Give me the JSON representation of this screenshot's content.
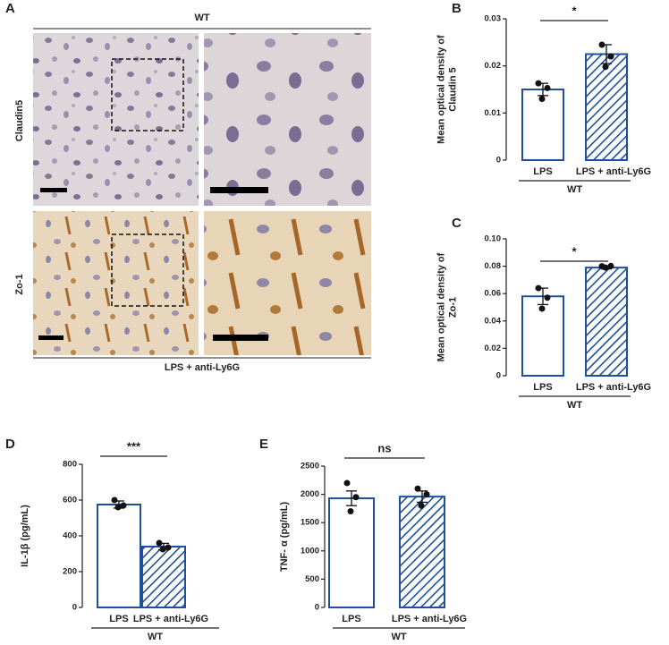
{
  "panel_a": {
    "letter": "A",
    "header": "WT",
    "rows": [
      "Claudin5",
      "Zo-1"
    ],
    "footer": "LPS + anti-Ly6G"
  },
  "chart_data": [
    {
      "type": "bar",
      "panel": "B",
      "ylabel": [
        "Mean optical density of",
        "Claudin 5"
      ],
      "categories": [
        "LPS",
        "LPS + anti-Ly6G"
      ],
      "group": "WT",
      "values": [
        0.015,
        0.0225
      ],
      "errors": [
        0.0013,
        0.002
      ],
      "points": [
        [
          0.0163,
          0.0153,
          0.013
        ],
        [
          0.0245,
          0.022,
          0.0198
        ]
      ],
      "significance": "*",
      "color": "#1d4f9a",
      "hatched": [
        false,
        true
      ],
      "ylim": [
        0,
        0.03
      ],
      "yticks": [
        0,
        0.01,
        0.02,
        0.03
      ]
    },
    {
      "type": "bar",
      "panel": "C",
      "ylabel": [
        "Mean optical density of",
        "Zo-1"
      ],
      "categories": [
        "LPS",
        "LPS + anti-Ly6G"
      ],
      "group": "WT",
      "values": [
        0.058,
        0.079
      ],
      "errors": [
        0.006,
        0.001
      ],
      "points": [
        [
          0.064,
          0.057,
          0.049
        ],
        [
          0.08,
          0.0802,
          0.079
        ]
      ],
      "significance": "*",
      "color": "#1d4f9a",
      "hatched": [
        false,
        true
      ],
      "ylim": [
        0,
        0.1
      ],
      "yticks": [
        0,
        0.02,
        0.04,
        0.06,
        0.08,
        {
          "value": 0.1,
          "label": "0.10"
        }
      ]
    },
    {
      "type": "bar",
      "panel": "D",
      "ylabel": [
        "IL-1β (pg/mL)"
      ],
      "categories": [
        "LPS",
        "LPS + anti-Ly6G"
      ],
      "group": "WT",
      "values": [
        575,
        340
      ],
      "errors": [
        20,
        18
      ],
      "points": [
        [
          600,
          570,
          560
        ],
        [
          360,
          335,
          325
        ]
      ],
      "significance": "***",
      "color": "#1d4f9a",
      "hatched": [
        false,
        true
      ],
      "ylim": [
        0,
        800
      ],
      "yticks": [
        0,
        200,
        400,
        600,
        800
      ]
    },
    {
      "type": "bar",
      "panel": "E",
      "ylabel": [
        "TNF- α (pg/mL)"
      ],
      "categories": [
        "LPS",
        "LPS + anti-Ly6G"
      ],
      "group": "WT",
      "values": [
        1930,
        1960
      ],
      "errors": [
        130,
        100
      ],
      "points": [
        [
          2200,
          1950,
          1700
        ],
        [
          2100,
          2000,
          1800
        ]
      ],
      "significance": "ns",
      "color": "#1d4f9a",
      "hatched": [
        false,
        true
      ],
      "ylim": [
        0,
        2500
      ],
      "yticks": [
        0,
        500,
        1000,
        1500,
        2000,
        2500
      ]
    }
  ]
}
